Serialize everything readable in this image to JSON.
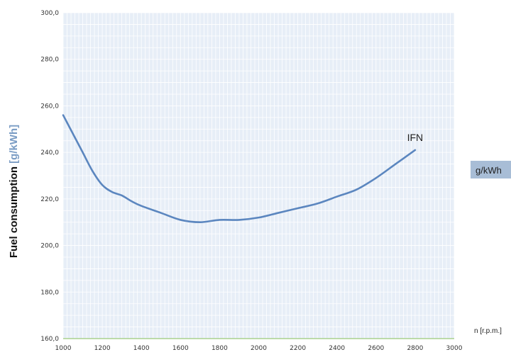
{
  "chart_data": {
    "type": "line",
    "title": "",
    "ylabel": "Fuel consumption",
    "ylabel_unit": " [g/kWh]",
    "xlabel": "n [r.p.m.]",
    "xlim": [
      1000,
      3000
    ],
    "ylim": [
      160,
      300
    ],
    "x_ticks": [
      1000,
      1200,
      1400,
      1600,
      1800,
      2000,
      2200,
      2400,
      2600,
      2800,
      3000
    ],
    "y_ticks": [
      "160,0",
      "180,0",
      "200,0",
      "220,0",
      "240,0",
      "260,0",
      "280,0",
      "300,0"
    ],
    "grid": true,
    "series": [
      {
        "name": "IFN",
        "color": "#5b86bf",
        "x": [
          1000,
          1050,
          1100,
          1150,
          1200,
          1250,
          1300,
          1350,
          1400,
          1500,
          1600,
          1700,
          1800,
          1900,
          2000,
          2100,
          2200,
          2300,
          2400,
          2500,
          2600,
          2700,
          2800
        ],
        "y": [
          256,
          248,
          240,
          232,
          226,
          223,
          221.5,
          219,
          217,
          214,
          211,
          210,
          211,
          211,
          212,
          214,
          216,
          218,
          221,
          224,
          229,
          235,
          241
        ]
      }
    ],
    "side_unit_label": "g/kWh"
  },
  "colors": {
    "plot_background": "#e7eef7",
    "grid": "#ffffff",
    "baseline": "#a9d18e",
    "unit_tag_background": "#a8bdd6"
  }
}
